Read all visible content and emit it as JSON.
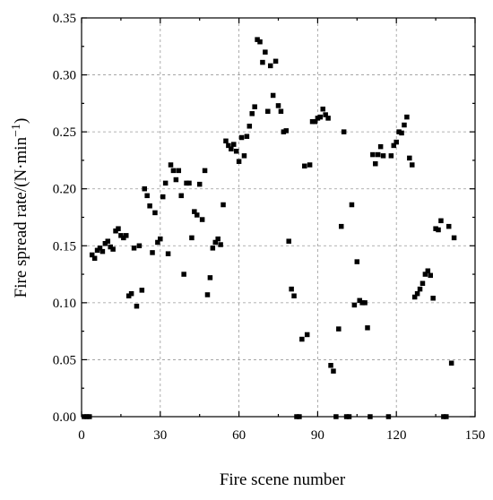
{
  "chart_data": {
    "type": "scatter",
    "xlabel": "Fire scene number",
    "ylabel": "Fire spread rate/(N·min",
    "ylabel_sup": "−1",
    "ylabel_close": ")",
    "xlim": [
      0,
      150
    ],
    "ylim": [
      0,
      0.35
    ],
    "xticks": [
      0,
      30,
      60,
      90,
      120,
      150
    ],
    "yticks": [
      0.0,
      0.05,
      0.1,
      0.15,
      0.2,
      0.25,
      0.3,
      0.35
    ],
    "xtick_labels": [
      "0",
      "30",
      "60",
      "90",
      "120",
      "150"
    ],
    "ytick_labels": [
      "0.00",
      "0.05",
      "0.10",
      "0.15",
      "0.20",
      "0.25",
      "0.30",
      "0.35"
    ],
    "grid": true,
    "marker": "square",
    "marker_color": "#000000",
    "points": [
      [
        1,
        0.0
      ],
      [
        2,
        0.0
      ],
      [
        3,
        0.0
      ],
      [
        4,
        0.142
      ],
      [
        5,
        0.139
      ],
      [
        6,
        0.146
      ],
      [
        7,
        0.148
      ],
      [
        8,
        0.145
      ],
      [
        9,
        0.152
      ],
      [
        10,
        0.154
      ],
      [
        11,
        0.149
      ],
      [
        12,
        0.147
      ],
      [
        13,
        0.163
      ],
      [
        14,
        0.165
      ],
      [
        15,
        0.159
      ],
      [
        16,
        0.157
      ],
      [
        17,
        0.159
      ],
      [
        18,
        0.106
      ],
      [
        19,
        0.108
      ],
      [
        20,
        0.148
      ],
      [
        21,
        0.097
      ],
      [
        22,
        0.15
      ],
      [
        23,
        0.111
      ],
      [
        24,
        0.2
      ],
      [
        25,
        0.194
      ],
      [
        26,
        0.185
      ],
      [
        27,
        0.144
      ],
      [
        28,
        0.179
      ],
      [
        29,
        0.153
      ],
      [
        30,
        0.156
      ],
      [
        31,
        0.193
      ],
      [
        32,
        0.205
      ],
      [
        33,
        0.143
      ],
      [
        34,
        0.221
      ],
      [
        35,
        0.216
      ],
      [
        36,
        0.208
      ],
      [
        37,
        0.216
      ],
      [
        38,
        0.194
      ],
      [
        39,
        0.125
      ],
      [
        40,
        0.205
      ],
      [
        41,
        0.205
      ],
      [
        42,
        0.157
      ],
      [
        43,
        0.18
      ],
      [
        44,
        0.177
      ],
      [
        45,
        0.204
      ],
      [
        46,
        0.173
      ],
      [
        47,
        0.216
      ],
      [
        48,
        0.107
      ],
      [
        49,
        0.122
      ],
      [
        50,
        0.148
      ],
      [
        51,
        0.153
      ],
      [
        52,
        0.156
      ],
      [
        53,
        0.151
      ],
      [
        54,
        0.186
      ],
      [
        55,
        0.242
      ],
      [
        56,
        0.238
      ],
      [
        57,
        0.235
      ],
      [
        58,
        0.239
      ],
      [
        59,
        0.233
      ],
      [
        60,
        0.224
      ],
      [
        61,
        0.245
      ],
      [
        62,
        0.229
      ],
      [
        63,
        0.246
      ],
      [
        64,
        0.255
      ],
      [
        65,
        0.266
      ],
      [
        66,
        0.272
      ],
      [
        67,
        0.331
      ],
      [
        68,
        0.329
      ],
      [
        69,
        0.311
      ],
      [
        70,
        0.32
      ],
      [
        71,
        0.268
      ],
      [
        72,
        0.308
      ],
      [
        73,
        0.282
      ],
      [
        74,
        0.312
      ],
      [
        75,
        0.273
      ],
      [
        76,
        0.268
      ],
      [
        77,
        0.25
      ],
      [
        78,
        0.251
      ],
      [
        79,
        0.154
      ],
      [
        80,
        0.112
      ],
      [
        81,
        0.106
      ],
      [
        82,
        0.0
      ],
      [
        83,
        0.0
      ],
      [
        84,
        0.068
      ],
      [
        85,
        0.22
      ],
      [
        86,
        0.072
      ],
      [
        87,
        0.221
      ],
      [
        88,
        0.259
      ],
      [
        89,
        0.259
      ],
      [
        90,
        0.262
      ],
      [
        91,
        0.263
      ],
      [
        92,
        0.27
      ],
      [
        93,
        0.265
      ],
      [
        94,
        0.262
      ],
      [
        95,
        0.045
      ],
      [
        96,
        0.04
      ],
      [
        97,
        0.0
      ],
      [
        98,
        0.077
      ],
      [
        99,
        0.167
      ],
      [
        100,
        0.25
      ],
      [
        101,
        0.0
      ],
      [
        102,
        0.0
      ],
      [
        103,
        0.186
      ],
      [
        104,
        0.098
      ],
      [
        105,
        0.136
      ],
      [
        106,
        0.102
      ],
      [
        107,
        0.1
      ],
      [
        108,
        0.1
      ],
      [
        109,
        0.078
      ],
      [
        110,
        0.0
      ],
      [
        111,
        0.23
      ],
      [
        112,
        0.222
      ],
      [
        113,
        0.23
      ],
      [
        114,
        0.237
      ],
      [
        115,
        0.229
      ],
      [
        117,
        0.0
      ],
      [
        118,
        0.229
      ],
      [
        119,
        0.238
      ],
      [
        120,
        0.241
      ],
      [
        121,
        0.25
      ],
      [
        122,
        0.249
      ],
      [
        123,
        0.256
      ],
      [
        124,
        0.263
      ],
      [
        125,
        0.227
      ],
      [
        126,
        0.221
      ],
      [
        127,
        0.105
      ],
      [
        128,
        0.108
      ],
      [
        129,
        0.112
      ],
      [
        130,
        0.117
      ],
      [
        131,
        0.125
      ],
      [
        132,
        0.128
      ],
      [
        133,
        0.124
      ],
      [
        134,
        0.104
      ],
      [
        135,
        0.165
      ],
      [
        136,
        0.164
      ],
      [
        137,
        0.172
      ],
      [
        138,
        0.0
      ],
      [
        139,
        0.0
      ],
      [
        140,
        0.167
      ],
      [
        141,
        0.047
      ],
      [
        142,
        0.157
      ]
    ]
  }
}
